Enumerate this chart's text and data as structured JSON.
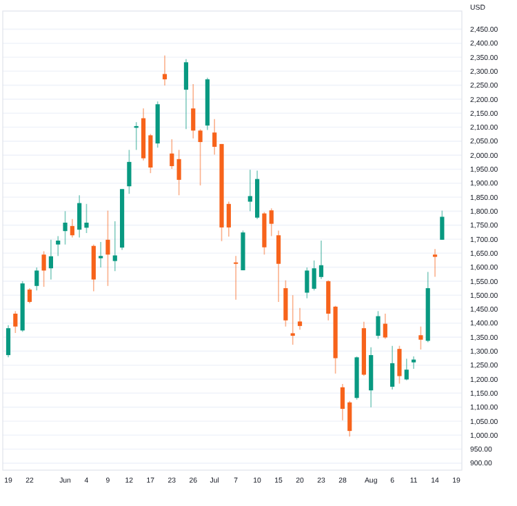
{
  "chart_data": {
    "type": "candlestick",
    "ylabel": "USD",
    "grid": "y",
    "categories": [
      "19",
      null,
      null,
      "22",
      null,
      null,
      null,
      null,
      "Jun",
      null,
      null,
      "4",
      null,
      null,
      "9",
      null,
      null,
      "12",
      null,
      null,
      "17",
      null,
      null,
      "23",
      null,
      null,
      "26",
      null,
      null,
      "Jul",
      null,
      null,
      "7",
      null,
      null,
      "10",
      null,
      null,
      "15",
      null,
      null,
      "20",
      null,
      null,
      "23",
      null,
      null,
      "28",
      null,
      null,
      null,
      "Aug",
      null,
      null,
      "6",
      null,
      null,
      "11",
      null,
      null,
      "14",
      null,
      null,
      "19"
    ],
    "ylim": [
      875,
      2515
    ],
    "yticks": [
      {
        "value": 900,
        "label": "900.00"
      },
      {
        "value": 950,
        "label": "950.00"
      },
      {
        "value": 1000,
        "label": "1,000.00"
      },
      {
        "value": 1050,
        "label": "1,050.00"
      },
      {
        "value": 1100,
        "label": "1,100.00"
      },
      {
        "value": 1150,
        "label": "1,150.00"
      },
      {
        "value": 1200,
        "label": "1,200.00"
      },
      {
        "value": 1250,
        "label": "1,250.00"
      },
      {
        "value": 1300,
        "label": "1,300.00"
      },
      {
        "value": 1350,
        "label": "1,350.00"
      },
      {
        "value": 1400,
        "label": "1,400.00"
      },
      {
        "value": 1450,
        "label": "1,450.00"
      },
      {
        "value": 1500,
        "label": "1,500.00"
      },
      {
        "value": 1550,
        "label": "1,550.00"
      },
      {
        "value": 1600,
        "label": "1,600.00"
      },
      {
        "value": 1650,
        "label": "1,650.00"
      },
      {
        "value": 1700,
        "label": "1,700.00"
      },
      {
        "value": 1750,
        "label": "1,750.00"
      },
      {
        "value": 1800,
        "label": "1,800.00"
      },
      {
        "value": 1850,
        "label": "1,850.00"
      },
      {
        "value": 1900,
        "label": "1,900.00"
      },
      {
        "value": 1950,
        "label": "1,950.00"
      },
      {
        "value": 2000,
        "label": "2,000.00"
      },
      {
        "value": 2050,
        "label": "2,050.00"
      },
      {
        "value": 2100,
        "label": "2,100.00"
      },
      {
        "value": 2150,
        "label": "2,150.00"
      },
      {
        "value": 2200,
        "label": "2,200.00"
      },
      {
        "value": 2250,
        "label": "2,250.00"
      },
      {
        "value": 2300,
        "label": "2,300.00"
      },
      {
        "value": 2350,
        "label": "2,350.00"
      },
      {
        "value": 2400,
        "label": "2,400.00"
      },
      {
        "value": 2450,
        "label": "2,450.00"
      }
    ],
    "ohlc": [
      [
        1286,
        1393,
        1278,
        1382
      ],
      [
        1434,
        1443,
        1365,
        1388
      ],
      [
        1374,
        1550,
        1369,
        1542
      ],
      [
        1520,
        1525,
        1471,
        1476
      ],
      [
        1533,
        1599,
        1517,
        1588
      ],
      [
        1645,
        1657,
        1530,
        1588
      ],
      [
        1596,
        1698,
        1556,
        1639
      ],
      [
        1681,
        1711,
        1640,
        1695
      ],
      [
        1729,
        1800,
        1681,
        1759
      ],
      [
        1747,
        1772,
        1706,
        1714
      ],
      [
        1734,
        1857,
        1706,
        1829
      ],
      [
        1741,
        1826,
        1722,
        1759
      ],
      [
        1676,
        1681,
        1514,
        1556
      ],
      [
        1632,
        1690,
        1599,
        1640
      ],
      [
        1698,
        1802,
        1533,
        1645
      ],
      [
        1622,
        1764,
        1586,
        1642
      ],
      [
        1670,
        1879,
        1662,
        1879
      ],
      [
        1889,
        2019,
        1862,
        1976
      ],
      [
        2098,
        2118,
        2019,
        2104
      ],
      [
        2132,
        2167,
        1981,
        1989
      ],
      [
        2071,
        2076,
        1936,
        1956
      ],
      [
        2042,
        2192,
        2027,
        2182
      ],
      [
        2290,
        2356,
        2249,
        2271
      ],
      [
        2006,
        2057,
        1951,
        1961
      ],
      [
        1986,
        2019,
        1857,
        1912
      ],
      [
        2234,
        2343,
        2093,
        2332
      ],
      [
        2167,
        2254,
        2060,
        2088
      ],
      [
        2088,
        2093,
        1892,
        2047
      ],
      [
        2106,
        2277,
        2090,
        2271
      ],
      [
        2081,
        2129,
        2002,
        2030
      ],
      [
        2040,
        2040,
        1693,
        1742
      ],
      [
        1826,
        1834,
        1709,
        1742
      ],
      [
        1617,
        1640,
        1484,
        1612
      ],
      [
        1589,
        1731,
        1589,
        1724
      ],
      [
        1834,
        1948,
        1800,
        1854
      ],
      [
        1777,
        1945,
        1772,
        1915
      ],
      [
        1792,
        1797,
        1645,
        1671
      ],
      [
        1803,
        1810,
        1711,
        1755
      ],
      [
        1714,
        1731,
        1476,
        1612
      ],
      [
        1525,
        1553,
        1388,
        1410
      ],
      [
        1364,
        1500,
        1323,
        1355
      ],
      [
        1406,
        1454,
        1377,
        1390
      ],
      [
        1509,
        1599,
        1489,
        1588
      ],
      [
        1523,
        1624,
        1517,
        1596
      ],
      [
        1565,
        1695,
        1558,
        1607
      ],
      [
        1550,
        1553,
        1410,
        1434
      ],
      [
        1459,
        1462,
        1220,
        1275
      ],
      [
        1171,
        1183,
        1053,
        1094
      ],
      [
        1117,
        1122,
        995,
        1015
      ],
      [
        1133,
        1281,
        1127,
        1278
      ],
      [
        1382,
        1405,
        1212,
        1216
      ],
      [
        1160,
        1314,
        1100,
        1286
      ],
      [
        1355,
        1443,
        1344,
        1425
      ],
      [
        1398,
        1434,
        1344,
        1349
      ],
      [
        1173,
        1319,
        1163,
        1257
      ],
      [
        1308,
        1319,
        1184,
        1211
      ],
      [
        1199,
        1273,
        1196,
        1234
      ],
      [
        1260,
        1281,
        1237,
        1270
      ],
      [
        1357,
        1388,
        1306,
        1341
      ],
      [
        1337,
        1583,
        1332,
        1525
      ],
      [
        1645,
        1665,
        1566,
        1637
      ],
      [
        1698,
        1802,
        1698,
        1780
      ],
      null,
      null
    ],
    "colors": [
      "#089981",
      "#f7631b",
      "#089981",
      "#f7631b",
      "#089981",
      "#f7631b",
      "#089981",
      "#089981",
      "#089981",
      "#f7631b",
      "#089981",
      "#089981",
      "#f7631b",
      "#089981",
      "#f7631b",
      "#089981",
      "#089981",
      "#089981",
      "#089981",
      "#f7631b",
      "#f7631b",
      "#089981",
      "#f7631b",
      "#f7631b",
      "#f7631b",
      "#089981",
      "#f7631b",
      "#f7631b",
      "#089981",
      "#f7631b",
      "#f7631b",
      "#f7631b",
      "#f7631b",
      "#089981",
      "#089981",
      "#089981",
      "#f7631b",
      "#f7631b",
      "#f7631b",
      "#f7631b",
      "#f7631b",
      "#f7631b",
      "#089981",
      "#089981",
      "#089981",
      "#f7631b",
      "#f7631b",
      "#f7631b",
      "#f7631b",
      "#089981",
      "#f7631b",
      "#089981",
      "#089981",
      "#f7631b",
      "#089981",
      "#f7631b",
      "#089981",
      "#089981",
      "#f7631b",
      "#089981",
      "#f7631b",
      "#089981",
      null,
      null
    ]
  }
}
